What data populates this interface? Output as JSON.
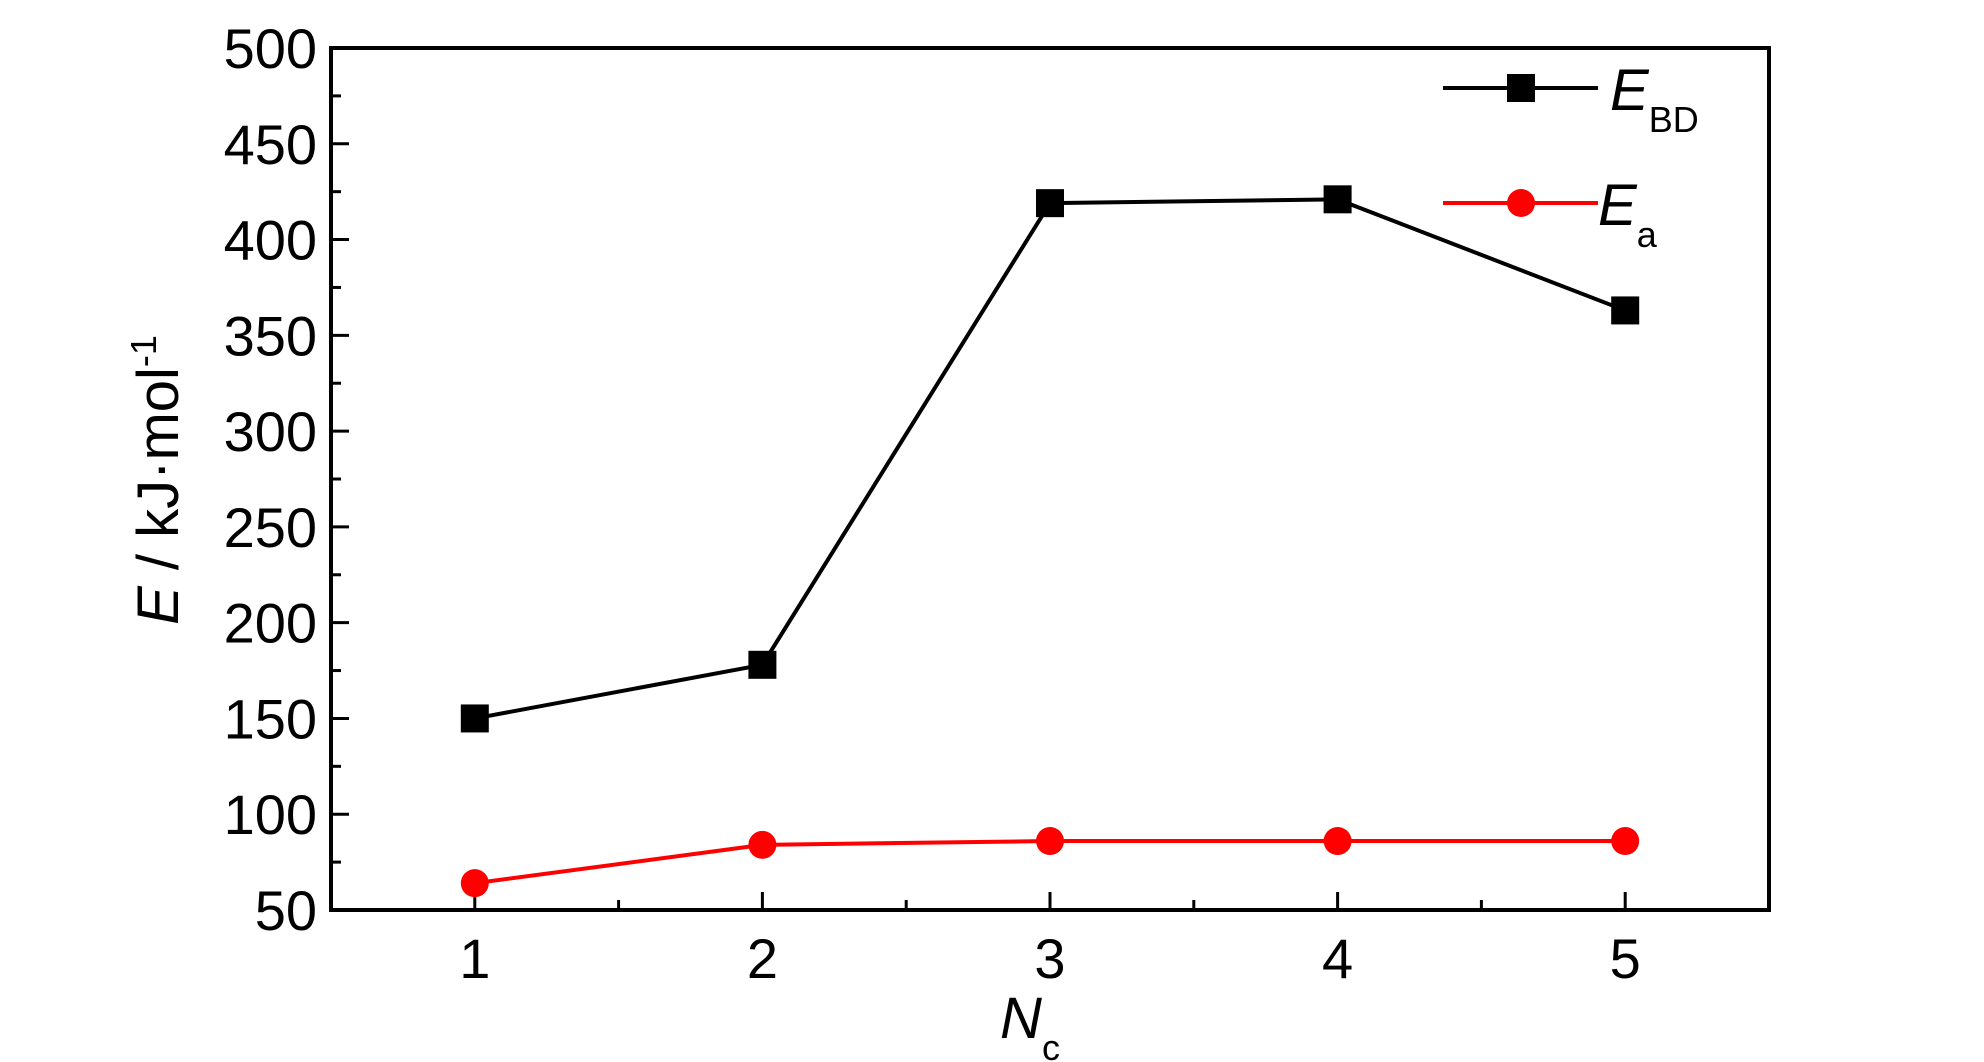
{
  "chart_data": {
    "type": "line",
    "x": [
      1,
      2,
      3,
      4,
      5
    ],
    "xticks": [
      "1",
      "2",
      "3",
      "4",
      "5"
    ],
    "yticks": [
      "50",
      "100",
      "150",
      "200",
      "250",
      "300",
      "350",
      "400",
      "450",
      "500"
    ],
    "xlim": [
      0.5,
      5.5
    ],
    "ylim": [
      50,
      500
    ],
    "xlabel": {
      "main": "N",
      "sub": "c"
    },
    "ylabel": {
      "main": "E",
      "rest": " / kJ·mol",
      "sup": "-1"
    },
    "series": [
      {
        "name": "E",
        "name_sub": "BD",
        "marker": "square",
        "color": "#000000",
        "values": [
          150,
          178,
          419,
          421,
          363
        ]
      },
      {
        "name": "E",
        "name_sub": "a",
        "marker": "circle",
        "color": "#ff0000",
        "values": [
          64,
          84,
          86,
          86,
          86
        ]
      }
    ],
    "legend_position": "top-right",
    "grid": false
  }
}
